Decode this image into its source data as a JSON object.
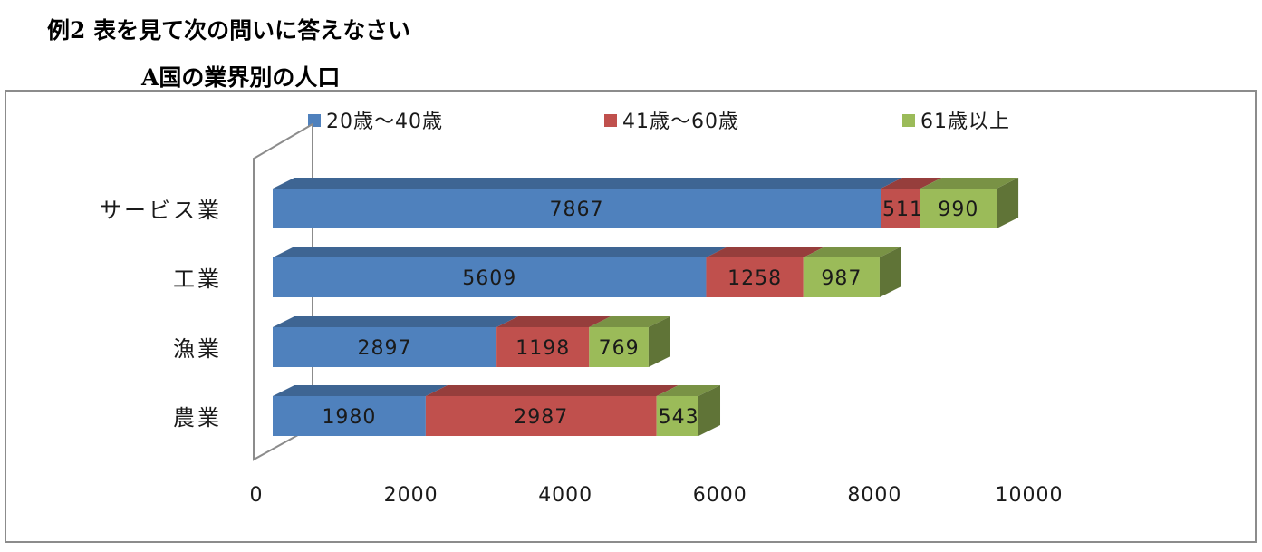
{
  "heading": {
    "main": "例2  表を見て次の問いに答えなさい",
    "sub": "A国の業界別の人口"
  },
  "chart_data": {
    "type": "bar",
    "orientation": "horizontal",
    "stacked": true,
    "style": "3d",
    "title": "",
    "xlabel": "",
    "ylabel": "",
    "categories": [
      "サービス業",
      "工業",
      "漁業",
      "農業"
    ],
    "series": [
      {
        "name": "20歳～40歳",
        "color": "#4f81bd",
        "values": [
          7867,
          5609,
          2897,
          1980
        ]
      },
      {
        "name": "41歳～60歳",
        "color": "#c0504d",
        "values": [
          511,
          1258,
          1198,
          2987
        ]
      },
      {
        "name": "61歳以上",
        "color": "#9bbb59",
        "values": [
          990,
          987,
          769,
          543
        ]
      }
    ],
    "xlim": [
      0,
      10000
    ],
    "xticks": [
      "0",
      "2000",
      "4000",
      "6000",
      "8000",
      "10000"
    ],
    "grid": false,
    "legend_position": "top"
  }
}
